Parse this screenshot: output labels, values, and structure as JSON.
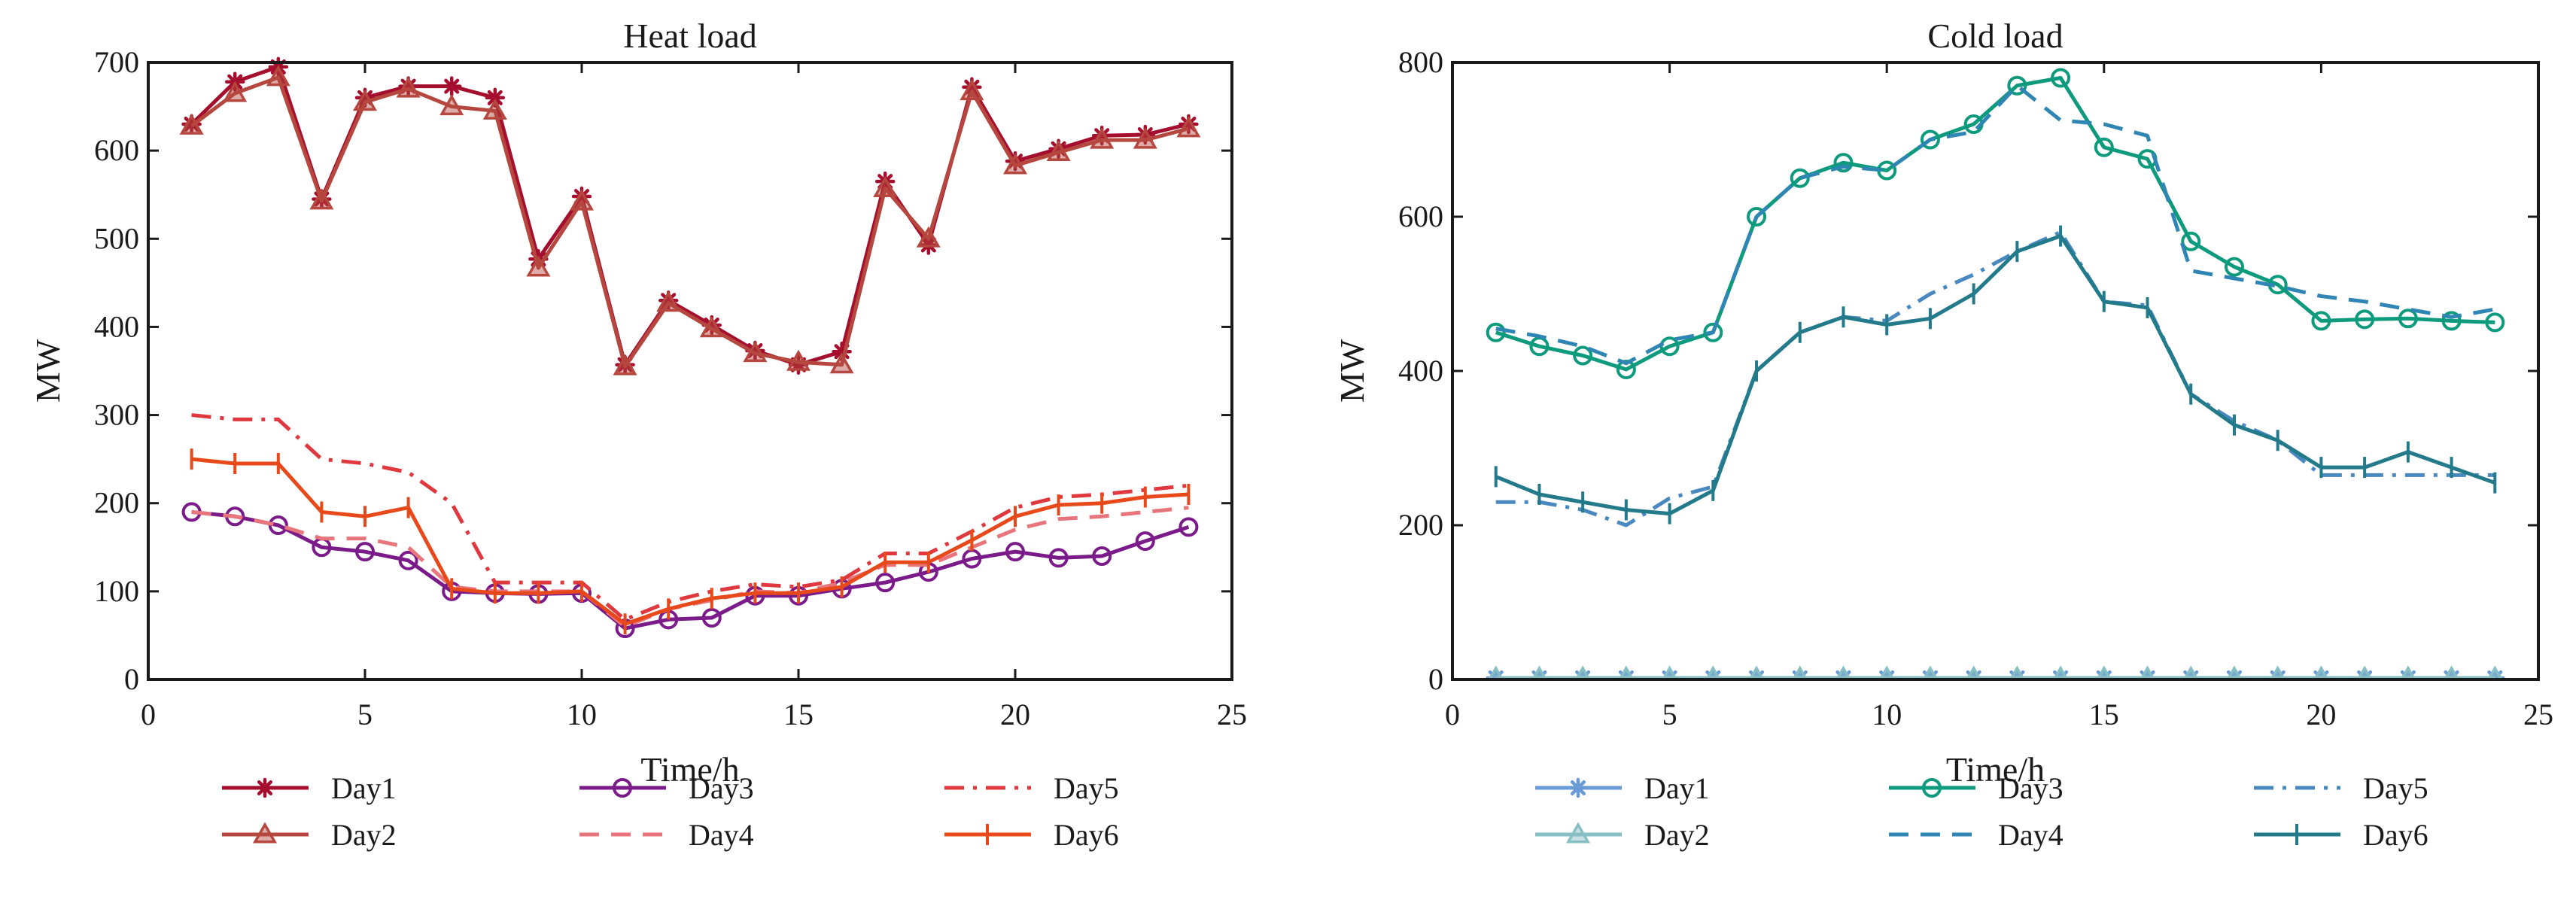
{
  "chart_data": [
    {
      "type": "line",
      "title": "Heat load",
      "xlabel": "Time/h",
      "ylabel": "MW",
      "xlim": [
        0,
        25
      ],
      "ylim": [
        0,
        700
      ],
      "xticks": [
        0,
        5,
        10,
        15,
        20,
        25
      ],
      "yticks": [
        0,
        100,
        200,
        300,
        400,
        500,
        600,
        700
      ],
      "grid": false,
      "legend_position": "bottom",
      "x": [
        1,
        2,
        3,
        4,
        5,
        6,
        7,
        8,
        9,
        10,
        11,
        12,
        13,
        14,
        15,
        16,
        17,
        18,
        19,
        20,
        21,
        22,
        23,
        24
      ],
      "series": [
        {
          "name": "Day1",
          "color": "#a50f2d",
          "dash": "solid",
          "marker": "asterisk",
          "values": [
            630,
            678,
            695,
            545,
            660,
            673,
            673,
            660,
            477,
            548,
            357,
            430,
            402,
            373,
            357,
            372,
            565,
            493,
            672,
            588,
            602,
            617,
            618,
            630
          ]
        },
        {
          "name": "Day2",
          "color": "#b5473f",
          "dash": "solid",
          "marker": "triangle",
          "values": [
            628,
            665,
            683,
            543,
            655,
            670,
            650,
            645,
            467,
            542,
            355,
            427,
            398,
            370,
            360,
            357,
            557,
            500,
            667,
            583,
            598,
            612,
            612,
            625
          ]
        },
        {
          "name": "Day3",
          "color": "#7b1b8a",
          "dash": "solid",
          "marker": "circle",
          "values": [
            190,
            185,
            175,
            150,
            145,
            135,
            100,
            98,
            97,
            98,
            58,
            68,
            70,
            95,
            95,
            103,
            110,
            122,
            137,
            145,
            138,
            140,
            157,
            173
          ]
        },
        {
          "name": "Day4",
          "color": "#e8747c",
          "dash": "dashed",
          "marker": "none",
          "values": [
            190,
            185,
            175,
            160,
            160,
            150,
            105,
            100,
            100,
            100,
            60,
            80,
            90,
            100,
            98,
            110,
            130,
            130,
            150,
            170,
            182,
            185,
            190,
            195
          ]
        },
        {
          "name": "Day5",
          "color": "#e0383f",
          "dash": "dashdot",
          "marker": "none",
          "values": [
            300,
            295,
            295,
            250,
            245,
            235,
            200,
            110,
            110,
            110,
            68,
            88,
            100,
            108,
            105,
            113,
            143,
            143,
            168,
            195,
            207,
            210,
            215,
            220
          ]
        },
        {
          "name": "Day6",
          "color": "#e8491b",
          "dash": "solid",
          "marker": "vtick",
          "values": [
            250,
            245,
            245,
            190,
            185,
            195,
            103,
            98,
            98,
            100,
            63,
            80,
            92,
            98,
            98,
            105,
            133,
            133,
            158,
            185,
            198,
            200,
            207,
            210
          ]
        }
      ]
    },
    {
      "type": "line",
      "title": "Cold load",
      "xlabel": "Time/h",
      "ylabel": "MW",
      "xlim": [
        0,
        25
      ],
      "ylim": [
        0,
        800
      ],
      "xticks": [
        0,
        5,
        10,
        15,
        20,
        25
      ],
      "yticks": [
        0,
        200,
        400,
        600,
        800
      ],
      "grid": false,
      "legend_position": "bottom",
      "x": [
        1,
        2,
        3,
        4,
        5,
        6,
        7,
        8,
        9,
        10,
        11,
        12,
        13,
        14,
        15,
        16,
        17,
        18,
        19,
        20,
        21,
        22,
        23,
        24
      ],
      "series": [
        {
          "name": "Day1",
          "color": "#6a9bd6",
          "dash": "solid",
          "marker": "asterisk",
          "values": [
            2,
            2,
            2,
            2,
            2,
            2,
            2,
            2,
            2,
            2,
            2,
            2,
            2,
            2,
            2,
            2,
            2,
            2,
            2,
            2,
            2,
            2,
            2,
            2
          ]
        },
        {
          "name": "Day2",
          "color": "#86bfc4",
          "dash": "solid",
          "marker": "triangle",
          "values": [
            2,
            2,
            2,
            2,
            2,
            2,
            2,
            2,
            2,
            2,
            2,
            2,
            2,
            2,
            2,
            2,
            2,
            2,
            2,
            2,
            2,
            2,
            2,
            2
          ]
        },
        {
          "name": "Day3",
          "color": "#0e9a7c",
          "dash": "solid",
          "marker": "circle",
          "values": [
            450,
            432,
            420,
            402,
            432,
            450,
            600,
            650,
            670,
            660,
            700,
            720,
            770,
            780,
            690,
            675,
            568,
            535,
            512,
            465,
            467,
            468,
            465,
            463
          ]
        },
        {
          "name": "Day4",
          "color": "#2f85b3",
          "dash": "dashed",
          "marker": "none",
          "values": [
            455,
            445,
            432,
            410,
            440,
            450,
            600,
            650,
            665,
            660,
            700,
            710,
            770,
            725,
            720,
            705,
            530,
            520,
            510,
            497,
            490,
            480,
            470,
            480
          ]
        },
        {
          "name": "Day5",
          "color": "#4a88c0",
          "dash": "dashdot",
          "marker": "none",
          "values": [
            230,
            230,
            220,
            200,
            235,
            250,
            400,
            450,
            470,
            465,
            500,
            525,
            555,
            580,
            490,
            485,
            370,
            335,
            310,
            265,
            265,
            265,
            265,
            265
          ]
        },
        {
          "name": "Day6",
          "color": "#237a8a",
          "dash": "solid",
          "marker": "vtick",
          "values": [
            263,
            240,
            230,
            220,
            215,
            245,
            400,
            450,
            470,
            460,
            468,
            500,
            555,
            575,
            490,
            482,
            370,
            330,
            310,
            275,
            275,
            295,
            275,
            255
          ]
        }
      ]
    }
  ]
}
